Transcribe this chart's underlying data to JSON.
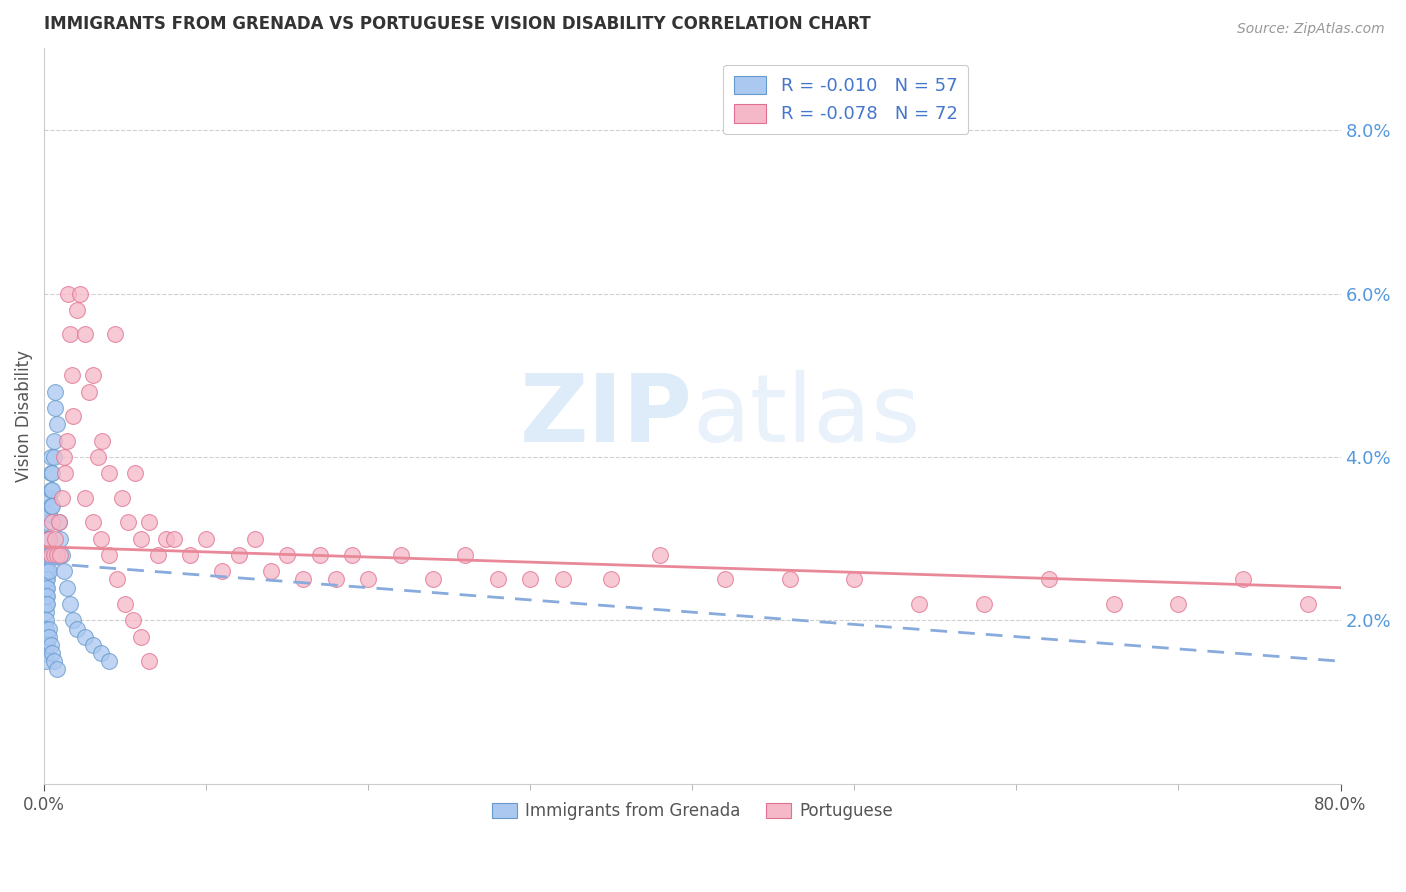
{
  "title": "IMMIGRANTS FROM GRENADA VS PORTUGUESE VISION DISABILITY CORRELATION CHART",
  "source": "Source: ZipAtlas.com",
  "ylabel_left": "Vision Disability",
  "legend_label1": "Immigrants from Grenada",
  "legend_label2": "Portuguese",
  "R1": -0.01,
  "N1": 57,
  "R2": -0.078,
  "N2": 72,
  "color_blue_fill": "#aac8f0",
  "color_blue_edge": "#6699cc",
  "color_pink_fill": "#f5b8c8",
  "color_pink_edge": "#e07090",
  "color_trend_blue": "#88aadd",
  "color_trend_pink": "#e88898",
  "color_right_axis": "#5599dd",
  "color_legend_text": "#333333",
  "color_legend_rval": "#4477cc",
  "watermark_zip": "ZIP",
  "watermark_atlas": "atlas",
  "xlim": [
    0.0,
    0.8
  ],
  "ylim": [
    0.0,
    0.09
  ],
  "xtick_left": 0.0,
  "xtick_right": 0.8,
  "xticks_minor": [
    0.1,
    0.2,
    0.3,
    0.4,
    0.5,
    0.6,
    0.7
  ],
  "yticks_right": [
    0.02,
    0.04,
    0.06,
    0.08
  ],
  "grenada_x": [
    0.001,
    0.001,
    0.001,
    0.001,
    0.001,
    0.001,
    0.001,
    0.001,
    0.001,
    0.001,
    0.002,
    0.002,
    0.002,
    0.002,
    0.002,
    0.002,
    0.002,
    0.002,
    0.003,
    0.003,
    0.003,
    0.003,
    0.003,
    0.004,
    0.004,
    0.004,
    0.004,
    0.005,
    0.005,
    0.005,
    0.006,
    0.006,
    0.007,
    0.007,
    0.008,
    0.009,
    0.01,
    0.011,
    0.012,
    0.014,
    0.016,
    0.018,
    0.02,
    0.025,
    0.03,
    0.035,
    0.04,
    0.001,
    0.001,
    0.002,
    0.002,
    0.003,
    0.003,
    0.004,
    0.005,
    0.006,
    0.008
  ],
  "grenada_y": [
    0.03,
    0.028,
    0.026,
    0.025,
    0.024,
    0.023,
    0.022,
    0.021,
    0.02,
    0.019,
    0.032,
    0.03,
    0.028,
    0.026,
    0.025,
    0.024,
    0.023,
    0.022,
    0.035,
    0.033,
    0.03,
    0.028,
    0.026,
    0.04,
    0.038,
    0.036,
    0.034,
    0.038,
    0.036,
    0.034,
    0.042,
    0.04,
    0.048,
    0.046,
    0.044,
    0.032,
    0.03,
    0.028,
    0.026,
    0.024,
    0.022,
    0.02,
    0.019,
    0.018,
    0.017,
    0.016,
    0.015,
    0.016,
    0.015,
    0.018,
    0.017,
    0.019,
    0.018,
    0.017,
    0.016,
    0.015,
    0.014
  ],
  "portuguese_x": [
    0.003,
    0.004,
    0.005,
    0.006,
    0.007,
    0.008,
    0.009,
    0.01,
    0.011,
    0.012,
    0.013,
    0.014,
    0.015,
    0.016,
    0.017,
    0.018,
    0.02,
    0.022,
    0.025,
    0.028,
    0.03,
    0.033,
    0.036,
    0.04,
    0.044,
    0.048,
    0.052,
    0.056,
    0.06,
    0.065,
    0.07,
    0.075,
    0.08,
    0.09,
    0.1,
    0.11,
    0.12,
    0.13,
    0.14,
    0.15,
    0.16,
    0.17,
    0.18,
    0.19,
    0.2,
    0.22,
    0.24,
    0.26,
    0.28,
    0.3,
    0.32,
    0.35,
    0.38,
    0.42,
    0.46,
    0.5,
    0.54,
    0.58,
    0.62,
    0.66,
    0.7,
    0.74,
    0.78,
    0.025,
    0.03,
    0.035,
    0.04,
    0.045,
    0.05,
    0.055,
    0.06,
    0.065
  ],
  "portuguese_y": [
    0.03,
    0.028,
    0.032,
    0.028,
    0.03,
    0.028,
    0.032,
    0.028,
    0.035,
    0.04,
    0.038,
    0.042,
    0.06,
    0.055,
    0.05,
    0.045,
    0.058,
    0.06,
    0.055,
    0.048,
    0.05,
    0.04,
    0.042,
    0.038,
    0.055,
    0.035,
    0.032,
    0.038,
    0.03,
    0.032,
    0.028,
    0.03,
    0.03,
    0.028,
    0.03,
    0.026,
    0.028,
    0.03,
    0.026,
    0.028,
    0.025,
    0.028,
    0.025,
    0.028,
    0.025,
    0.028,
    0.025,
    0.028,
    0.025,
    0.025,
    0.025,
    0.025,
    0.028,
    0.025,
    0.025,
    0.025,
    0.022,
    0.022,
    0.025,
    0.022,
    0.022,
    0.025,
    0.022,
    0.035,
    0.032,
    0.03,
    0.028,
    0.025,
    0.022,
    0.02,
    0.018,
    0.015
  ],
  "trend_blue_x0": 0.0,
  "trend_blue_x1": 0.8,
  "trend_blue_y0": 0.027,
  "trend_blue_y1": 0.015,
  "trend_pink_x0": 0.0,
  "trend_pink_x1": 0.8,
  "trend_pink_y0": 0.029,
  "trend_pink_y1": 0.024
}
